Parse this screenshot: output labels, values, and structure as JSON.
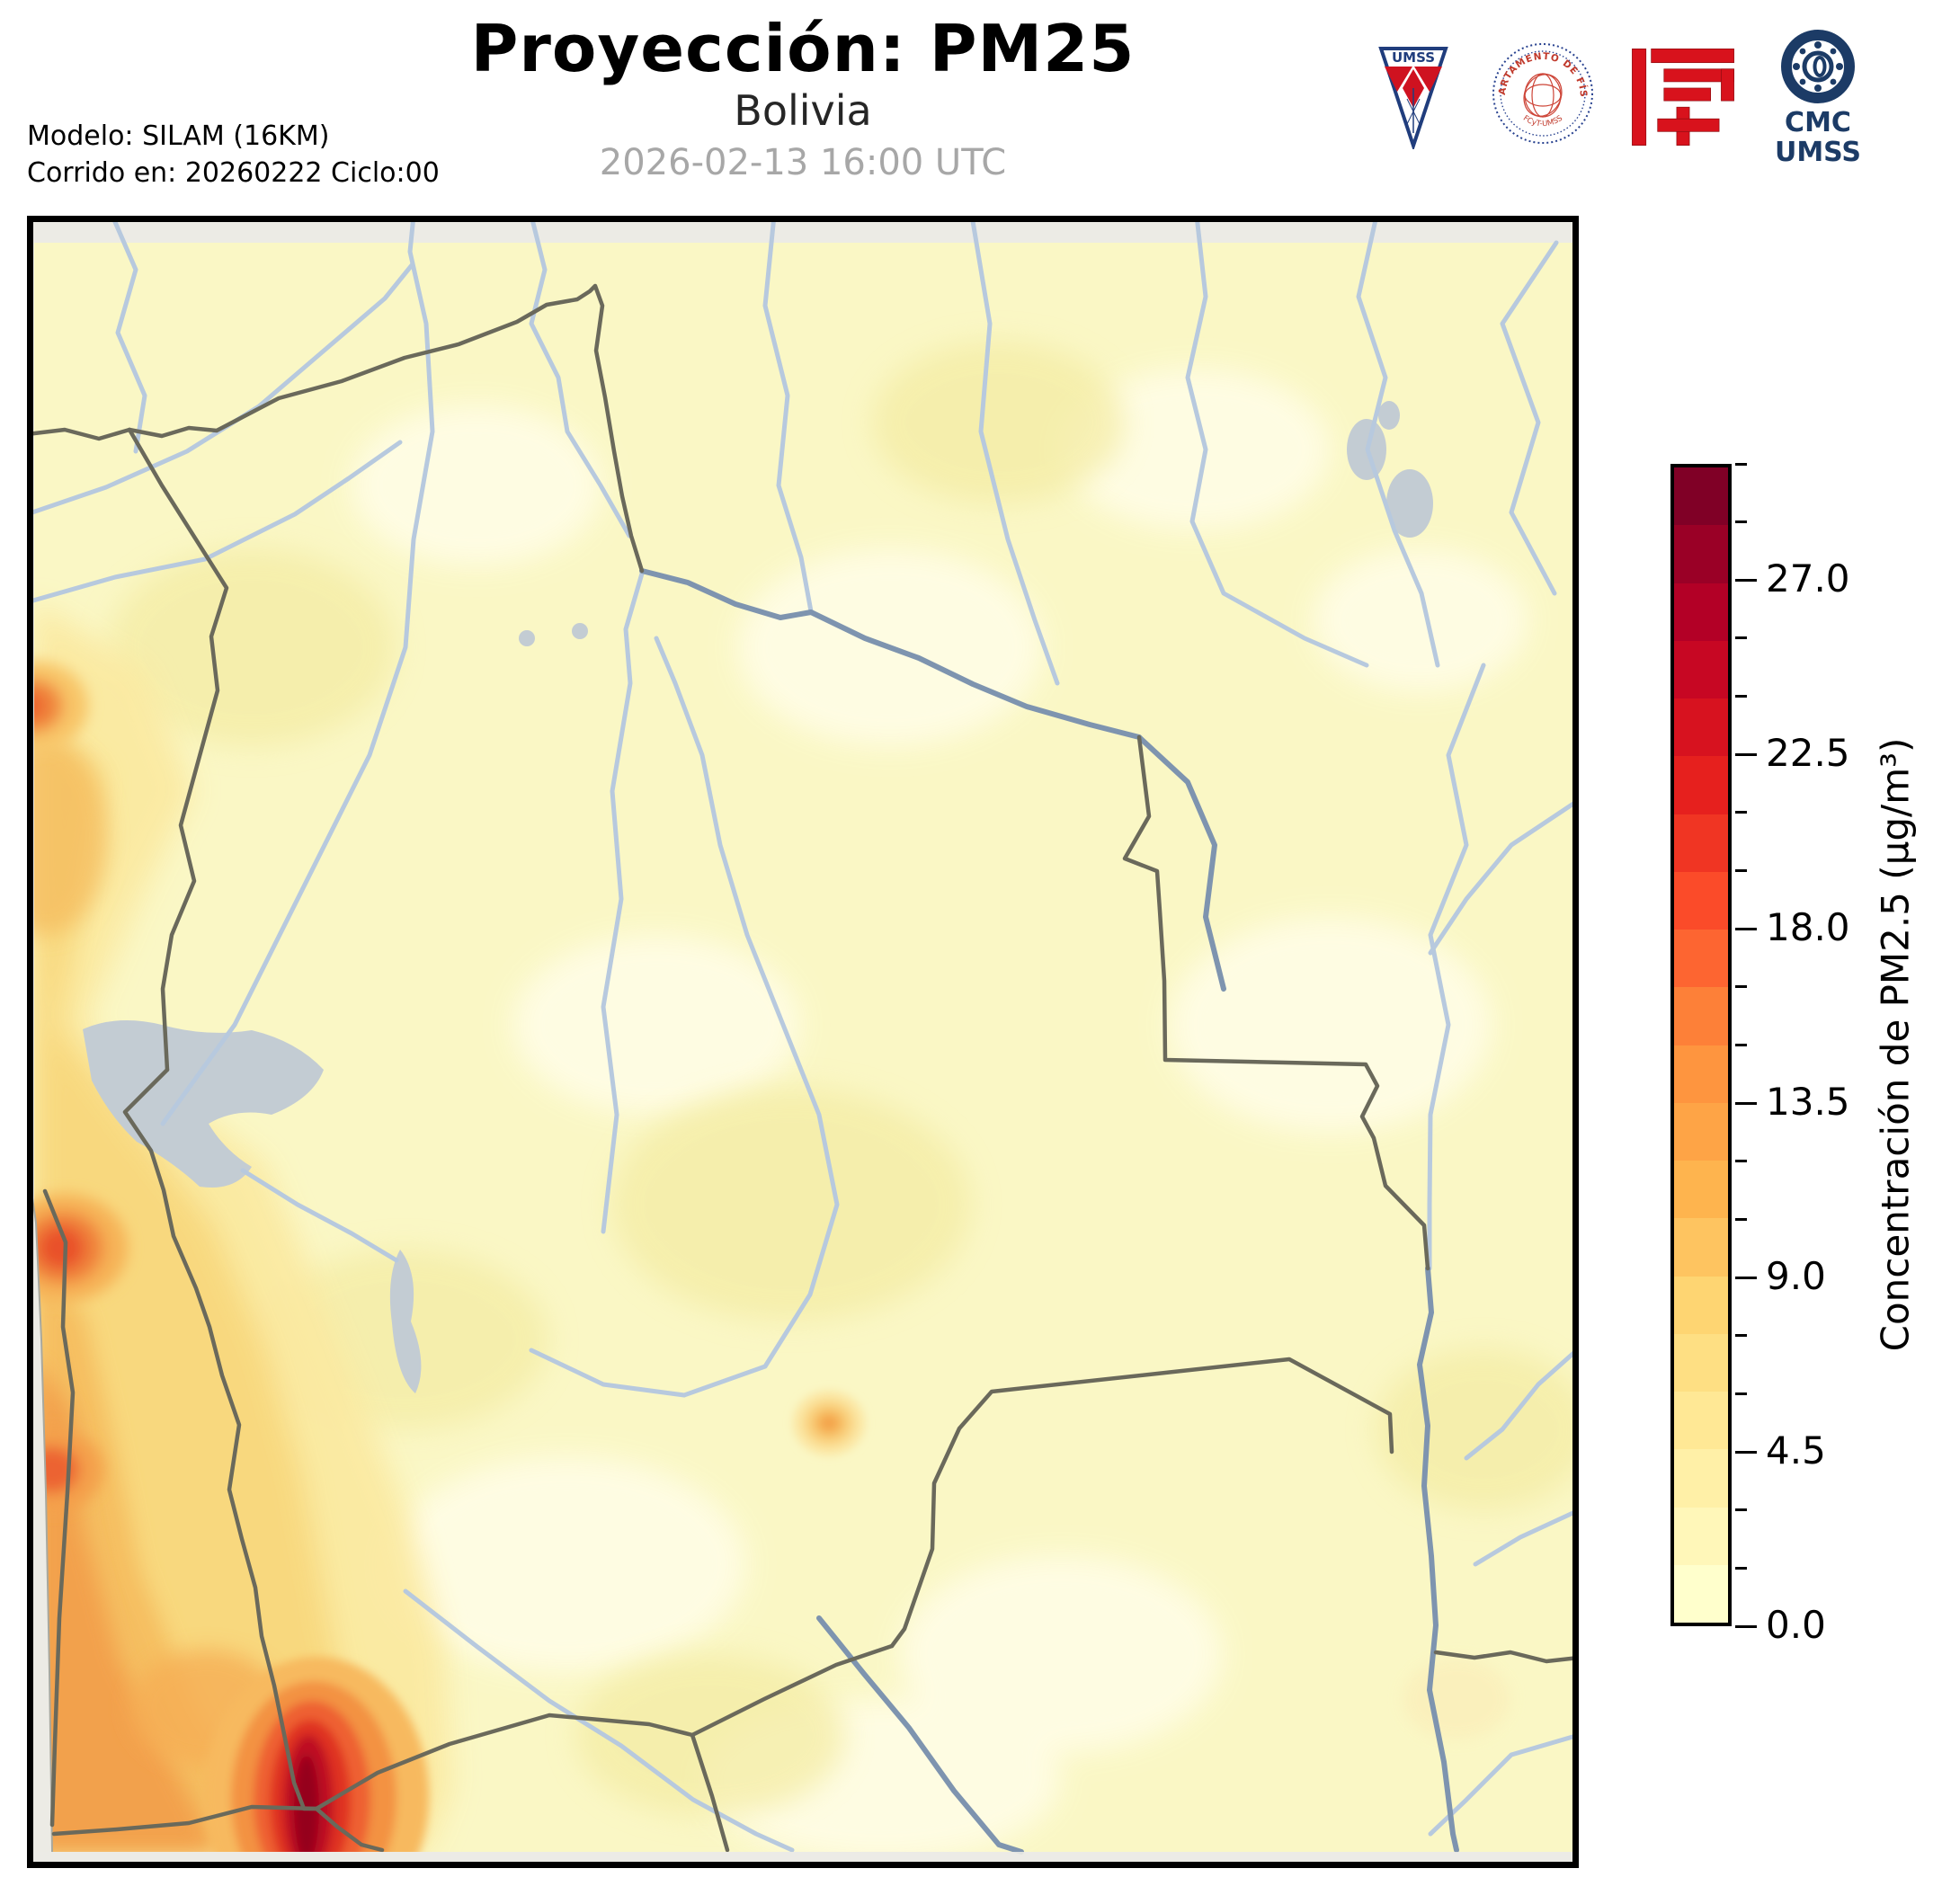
{
  "header": {
    "title": "Proyección: PM25",
    "subtitle": "Bolivia",
    "datetime": "2026-02-13 16:00 UTC",
    "model_info": {
      "line1": "Modelo: SILAM (16KM)",
      "line2": "Corrido en: 20260222 Ciclo:00"
    },
    "logos": {
      "umss_pennant_text": "UMSS",
      "fisica_seal_arc_text": "DEPARTAMENTO DE FÍSICA",
      "fisica_seal_bottom_text": "FCyT-UMSS",
      "cmc_line1": "CMC",
      "cmc_line2": "UMSS"
    }
  },
  "colorbar": {
    "label": "Concentración de PM2.5 (µg/m³)",
    "min": 0,
    "max": 30,
    "tick_step": 1.5,
    "major_tick_values": [
      0,
      4.5,
      9,
      13.5,
      18,
      22.5,
      27
    ],
    "major_tick_labels": [
      "0.0",
      "4.5",
      "9.0",
      "13.5",
      "18.0",
      "22.5",
      "27.0"
    ],
    "colors_bottom_to_top": [
      "#ffffcc",
      "#fff7b9",
      "#fff0a7",
      "#ffe895",
      "#fedf83",
      "#fed572",
      "#fec460",
      "#feb44e",
      "#fea446",
      "#fe953f",
      "#fd8038",
      "#fd6531",
      "#fb4b29",
      "#f03523",
      "#e6201e",
      "#d7121f",
      "#c70723",
      "#b30026",
      "#9a0026",
      "#800026"
    ]
  },
  "map": {
    "region_label": "Bolivia",
    "base_color": "#faf7c5",
    "outside_domain_color": "#ecebe5",
    "river_color": "#b7c9de",
    "major_river_color": "#7e94af",
    "border_color": "#6a695b",
    "lake_color": "#c3ccd3",
    "hotspot_core_color": "#95051f"
  }
}
